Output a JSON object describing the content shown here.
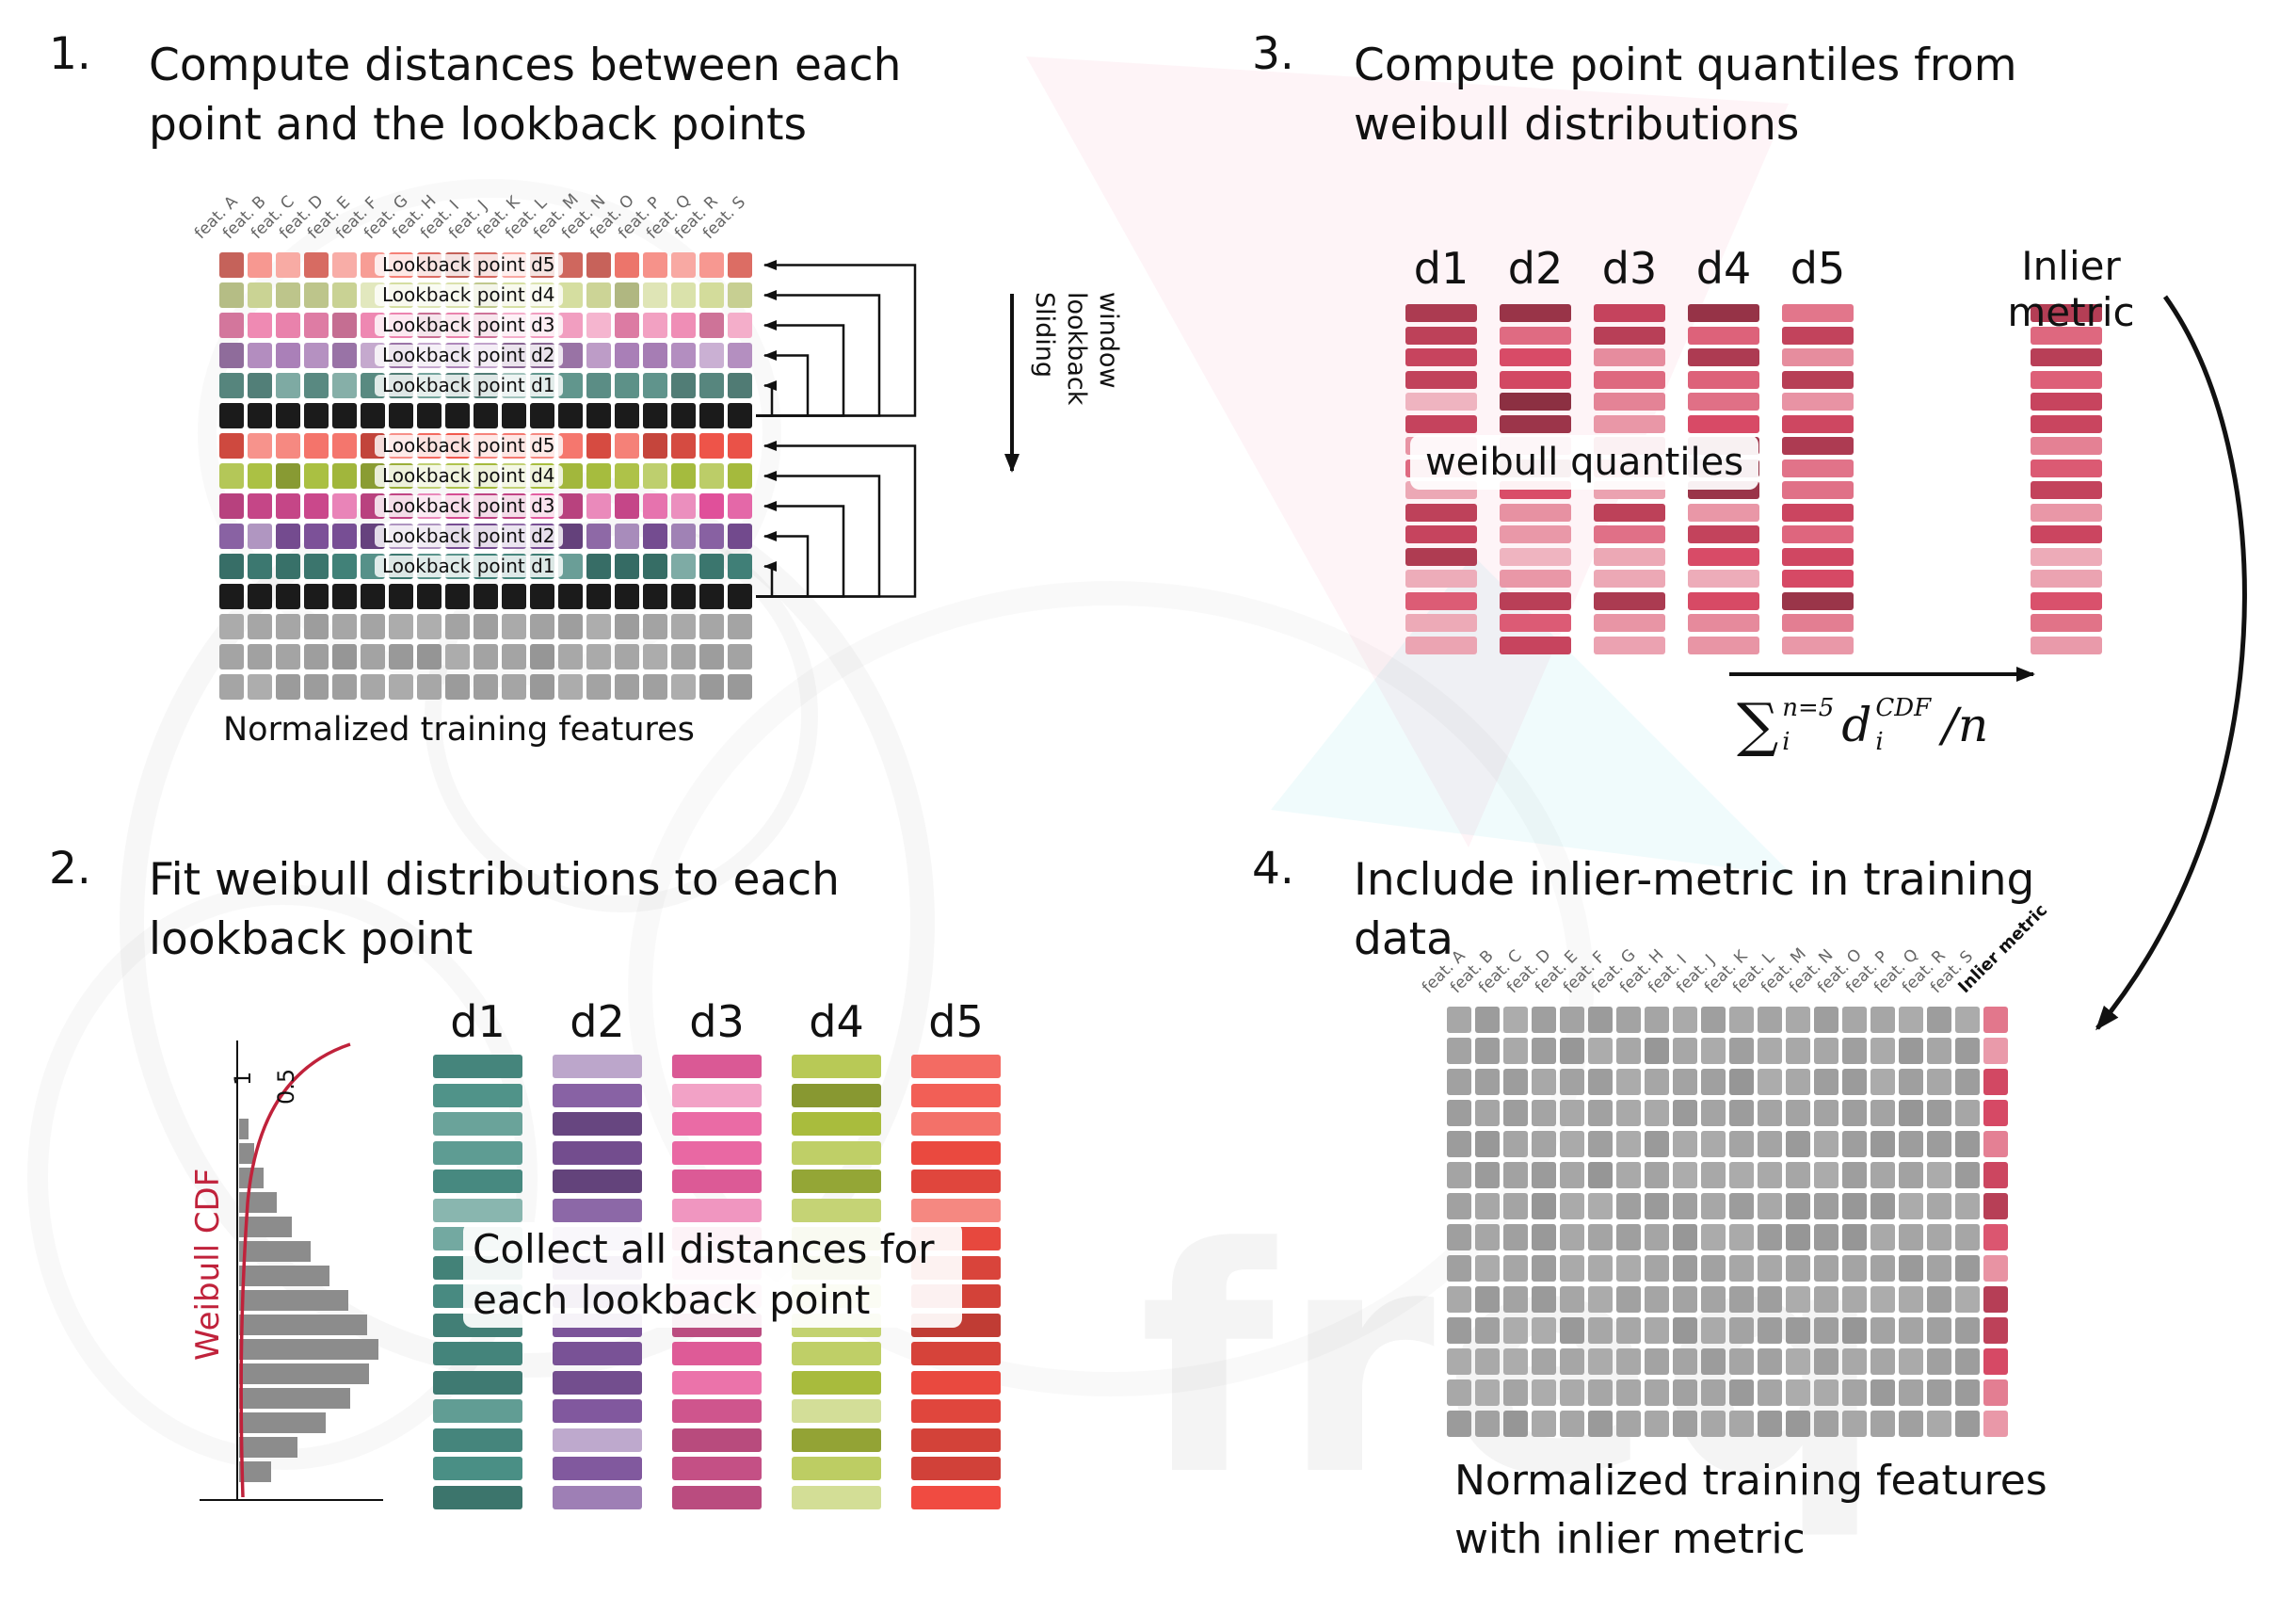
{
  "figure": {
    "watermark_text": "freq"
  },
  "features": [
    "feat. A",
    "feat. B",
    "feat. C",
    "feat. D",
    "feat. E",
    "feat. F",
    "feat. G",
    "feat. H",
    "feat. I",
    "feat. J",
    "feat. K",
    "feat. L",
    "feat. M",
    "feat. N",
    "feat. O",
    "feat. P",
    "feat. Q",
    "feat. R",
    "feat. S"
  ],
  "palette": {
    "black_row": "#1b1b1b",
    "gray_cell": "#a3a3a3",
    "quantile_red": "#d84a66",
    "weibull_curve": "#c0223b",
    "hist_bar": "#8c8c8c"
  },
  "panel1": {
    "number": "1.",
    "title": "Compute distances between each\npoint and the lookback points",
    "sliding_window_label": "Sliding\nlookback\nwindow",
    "caption": "Normalized training features",
    "rows": [
      {
        "label": "Lookback point d5",
        "color": "#f4796f"
      },
      {
        "label": "Lookback point d4",
        "color": "#d3dc9b"
      },
      {
        "label": "Lookback point d3",
        "color": "#ee85b0"
      },
      {
        "label": "Lookback point d2",
        "color": "#a97fb7"
      },
      {
        "label": "Lookback point d1",
        "color": "#62988f"
      },
      {
        "label": "",
        "color": "#1b1b1b"
      },
      {
        "label": "Lookback point d5",
        "color": "#f2554a"
      },
      {
        "label": "Lookback point d4",
        "color": "#a9bf3f"
      },
      {
        "label": "Lookback point d3",
        "color": "#e0509a"
      },
      {
        "label": "Lookback point d2",
        "color": "#7b5098"
      },
      {
        "label": "Lookback point d1",
        "color": "#42847b"
      },
      {
        "label": "",
        "color": "#1b1b1b"
      },
      {
        "label": "",
        "color": "#a3a3a3"
      },
      {
        "label": "",
        "color": "#a3a3a3"
      },
      {
        "label": "",
        "color": "#a3a3a3"
      }
    ]
  },
  "panel2": {
    "number": "2.",
    "title": "Fit weibull distributions to each\nlookback point",
    "weibull_cdf_label": "Weibull CDF",
    "axis_tick_1": "1",
    "axis_tick_05": "0.5",
    "overlay": "Collect all distances for\neach lookback point",
    "columns": [
      {
        "label": "d1",
        "color": "#4a8f85"
      },
      {
        "label": "d2",
        "color": "#7e559c"
      },
      {
        "label": "d3",
        "color": "#e85f9e"
      },
      {
        "label": "d4",
        "color": "#aec23f"
      },
      {
        "label": "d5",
        "color": "#f04b41"
      }
    ],
    "hist_values": [
      10,
      16,
      26,
      40,
      56,
      76,
      96,
      116,
      136,
      148,
      138,
      118,
      92,
      62,
      34
    ]
  },
  "panel3": {
    "number": "3.",
    "title": "Compute point quantiles from\nweibull distributions",
    "column_labels": [
      "d1",
      "d2",
      "d3",
      "d4",
      "d5"
    ],
    "overlay": "weibull quantiles",
    "inlier_label": "Inlier metric",
    "formula": {
      "sigma": "∑",
      "sigma_sup": "n=5",
      "sigma_sub": "i",
      "d": "d",
      "d_sup": "CDF",
      "d_sub": "i",
      "tail": "/n"
    }
  },
  "panel4": {
    "number": "4.",
    "title": "Include inlier-metric in training\ndata",
    "inlier_header": "Inlier metric",
    "caption": "Normalized training features\nwith inlier metric"
  }
}
